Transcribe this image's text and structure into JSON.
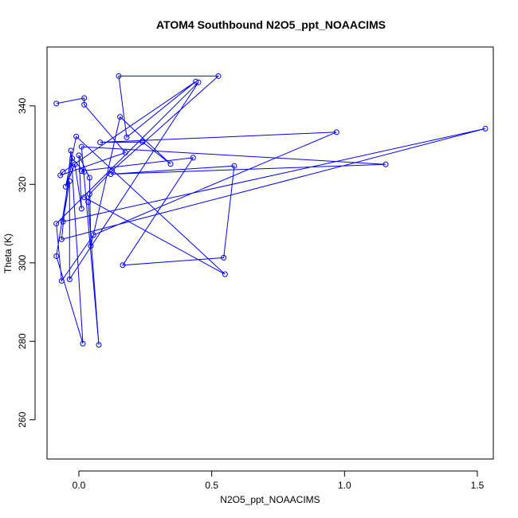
{
  "chart_data": {
    "type": "line",
    "title": "ATOM4 Southbound N2O5_ppt_NOAACIMS",
    "xlabel": "N2O5_ppt_NOAACIMS",
    "ylabel": "Theta (K)",
    "xlim": [
      -0.12,
      1.56
    ],
    "ylim": [
      250,
      355
    ],
    "x_ticks": [
      0.0,
      0.5,
      1.0,
      1.5
    ],
    "x_tick_labels": [
      "0.0",
      "0.5",
      "1.0",
      "1.5"
    ],
    "y_ticks": [
      260,
      280,
      300,
      320,
      340
    ],
    "y_tick_labels": [
      "260",
      "280",
      "300",
      "320",
      "340"
    ],
    "grid": false,
    "legend": "none",
    "colors": {
      "series": "#0000ff"
    },
    "series": [
      {
        "markers": "open-circle",
        "points": [
          {
            "x": -0.085,
            "y": 340.6
          },
          {
            "x": 0.02,
            "y": 342.0
          },
          {
            "x": 0.02,
            "y": 340.3
          },
          {
            "x": 0.175,
            "y": 328.1
          },
          {
            "x": -0.07,
            "y": 322.3
          },
          {
            "x": -0.06,
            "y": 323.2
          },
          {
            "x": 0.44,
            "y": 346.2
          },
          {
            "x": 0.18,
            "y": 332.0
          },
          {
            "x": 0.15,
            "y": 347.6
          },
          {
            "x": 0.525,
            "y": 347.6
          },
          {
            "x": 0.125,
            "y": 323.5
          },
          {
            "x": 0.04,
            "y": 317.5
          },
          {
            "x": 0.035,
            "y": 315.5
          },
          {
            "x": 0.075,
            "y": 279.1
          },
          {
            "x": 0.01,
            "y": 329.6
          },
          {
            "x": 1.155,
            "y": 325.1
          },
          {
            "x": 0.12,
            "y": 322.6
          },
          {
            "x": 0.585,
            "y": 324.7
          },
          {
            "x": 0.545,
            "y": 301.3
          },
          {
            "x": 0.165,
            "y": 299.4
          },
          {
            "x": 0.43,
            "y": 326.8
          },
          {
            "x": 0.01,
            "y": 323.4
          },
          {
            "x": 0.02,
            "y": 323.2
          },
          {
            "x": -0.025,
            "y": 326.6
          },
          {
            "x": -0.085,
            "y": 301.7
          },
          {
            "x": 0.015,
            "y": 279.4
          },
          {
            "x": -0.03,
            "y": 328.6
          },
          {
            "x": -0.065,
            "y": 306.0
          },
          {
            "x": 1.53,
            "y": 334.2
          },
          {
            "x": -0.06,
            "y": 310.5
          },
          {
            "x": -0.035,
            "y": 320.8
          },
          {
            "x": -0.035,
            "y": 295.8
          },
          {
            "x": 0.45,
            "y": 346.0
          },
          {
            "x": -0.085,
            "y": 310.0
          },
          {
            "x": -0.065,
            "y": 295.4
          },
          {
            "x": 0.055,
            "y": 307.1
          },
          {
            "x": 0.97,
            "y": 333.3
          },
          {
            "x": 0.08,
            "y": 330.7
          },
          {
            "x": 0.24,
            "y": 330.8
          },
          {
            "x": 0.345,
            "y": 325.2
          },
          {
            "x": 0.155,
            "y": 337.2
          },
          {
            "x": 0.045,
            "y": 304.3
          },
          {
            "x": 0.04,
            "y": 321.7
          },
          {
            "x": 0.0,
            "y": 327.4
          },
          {
            "x": 0.01,
            "y": 313.8
          },
          {
            "x": -0.015,
            "y": 325.1
          },
          {
            "x": -0.05,
            "y": 319.4
          },
          {
            "x": -0.01,
            "y": 332.2
          },
          {
            "x": 0.55,
            "y": 297.1
          },
          {
            "x": 0.02,
            "y": 316.7
          }
        ]
      }
    ]
  }
}
